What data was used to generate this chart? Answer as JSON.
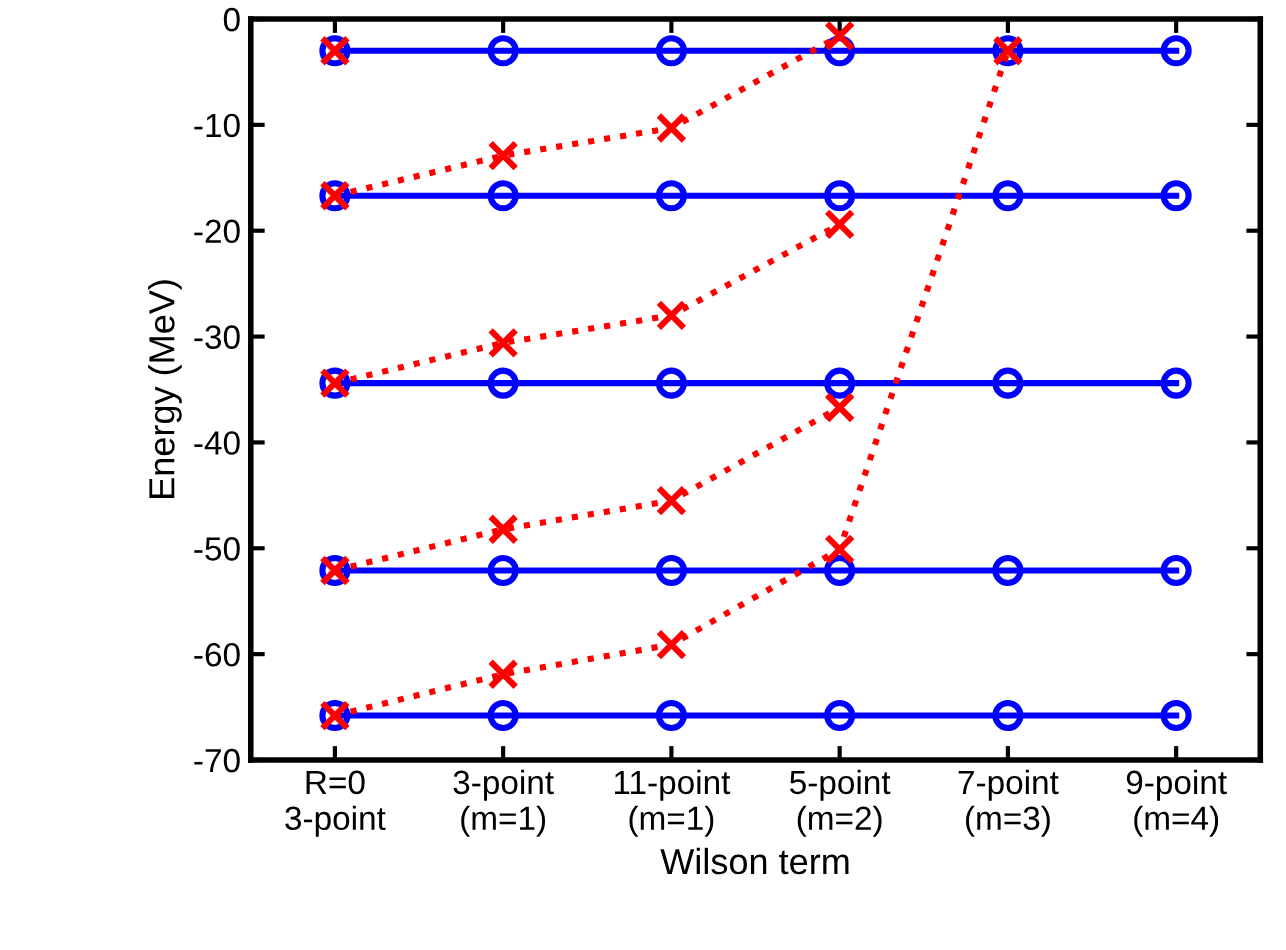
{
  "chart_data": {
    "type": "line",
    "xlabel": "Wilson term",
    "ylabel": "Energy (MeV)",
    "categories": [
      "R=0\n3-point",
      "3-point\n(m=1)",
      "11-point\n(m=1)",
      "5-point\n(m=2)",
      "7-point\n(m=3)",
      "9-point\n(m=4)"
    ],
    "ylim": [
      -70,
      0
    ],
    "yticks": [
      -70,
      -60,
      -50,
      -40,
      -30,
      -20,
      -10,
      0
    ],
    "grid": false,
    "legend": false,
    "series": [
      {
        "color": "#0000ff",
        "marker": "circle",
        "line_style": "solid",
        "values": [
          -3,
          -3,
          -3,
          -3,
          -3,
          -3
        ]
      },
      {
        "color": "#0000ff",
        "marker": "circle",
        "line_style": "solid",
        "values": [
          -16.7,
          -16.7,
          -16.7,
          -16.7,
          -16.7,
          -16.7
        ]
      },
      {
        "color": "#0000ff",
        "marker": "circle",
        "line_style": "solid",
        "values": [
          -34.4,
          -34.4,
          -34.4,
          -34.4,
          -34.4,
          -34.4
        ]
      },
      {
        "color": "#0000ff",
        "marker": "circle",
        "line_style": "solid",
        "values": [
          -52.1,
          -52.1,
          -52.1,
          -52.1,
          -52.1,
          -52.1
        ]
      },
      {
        "color": "#0000ff",
        "marker": "circle",
        "line_style": "solid",
        "values": [
          -65.8,
          -65.8,
          -65.8,
          -65.8,
          -65.8,
          -65.8
        ]
      },
      {
        "color": "#ff0000",
        "marker": "cross",
        "line_style": "dotted",
        "values": [
          -3,
          null,
          null,
          null,
          null,
          null
        ]
      },
      {
        "color": "#ff0000",
        "marker": "cross",
        "line_style": "dotted",
        "values": [
          -16.7,
          -12.9,
          -10.3,
          -1.6,
          null,
          null
        ]
      },
      {
        "color": "#ff0000",
        "marker": "cross",
        "line_style": "dotted",
        "values": [
          -34.4,
          -30.6,
          -28.0,
          -19.4,
          null,
          null
        ]
      },
      {
        "color": "#ff0000",
        "marker": "cross",
        "line_style": "dotted",
        "values": [
          -52.1,
          -48.2,
          -45.5,
          -36.7,
          null,
          null
        ]
      },
      {
        "color": "#ff0000",
        "marker": "cross",
        "line_style": "dotted",
        "values": [
          -65.8,
          -61.9,
          -59.1,
          -50.1,
          -3,
          null
        ]
      }
    ]
  }
}
